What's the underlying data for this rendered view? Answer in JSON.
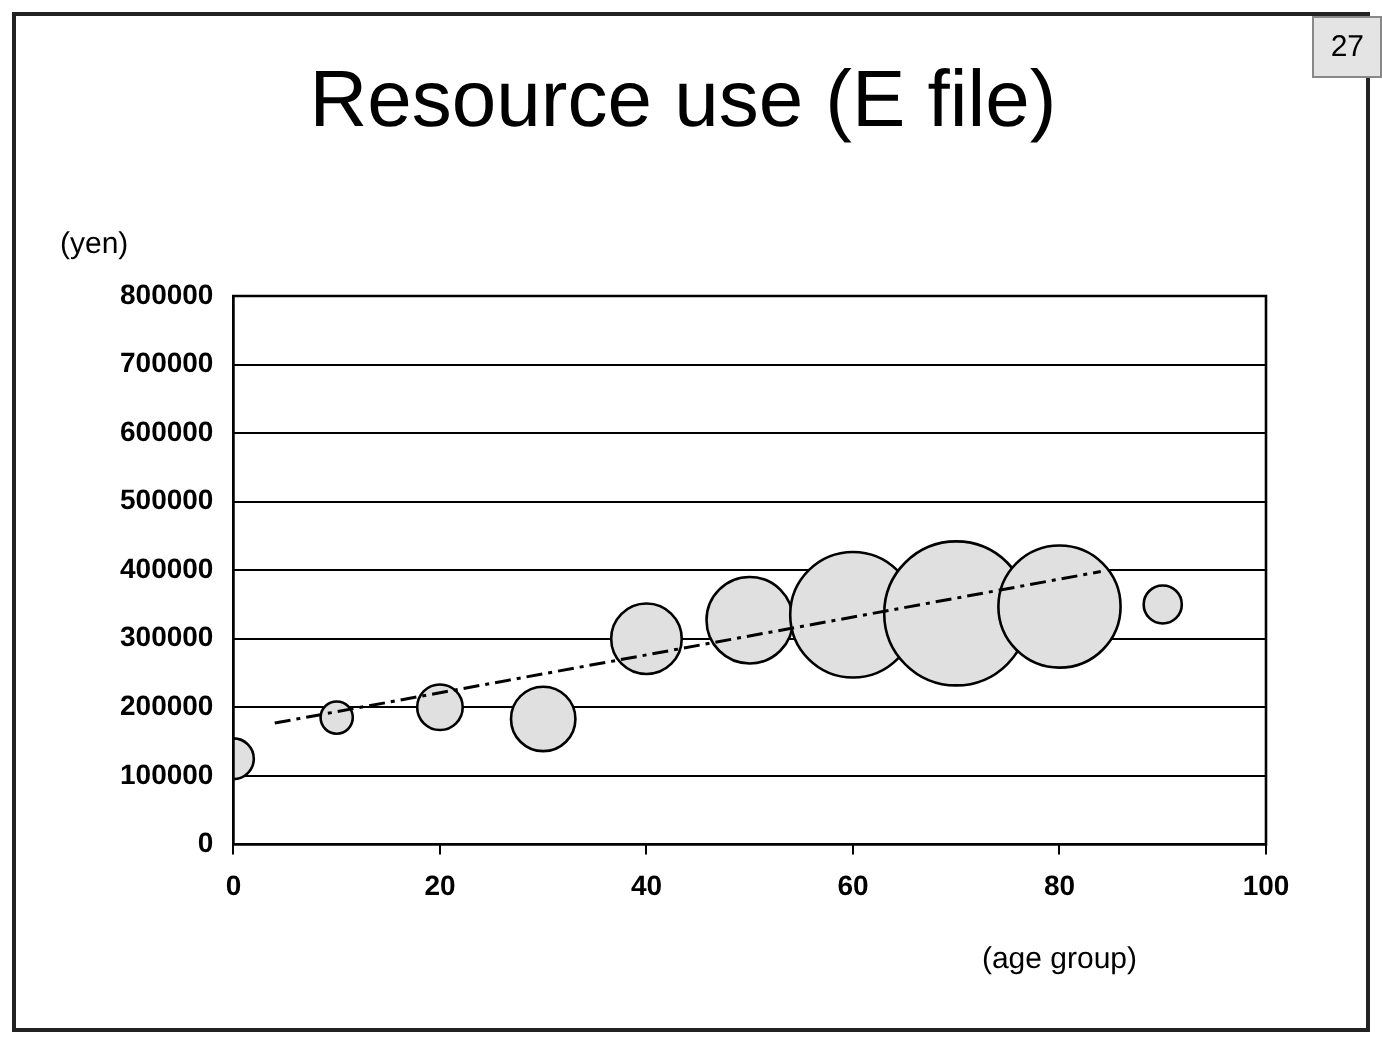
{
  "chart_data": {
    "type": "bubble",
    "title": "Resource use (E file)",
    "xlabel": "(age group)",
    "ylabel": "(yen)",
    "annotations": [
      "27"
    ],
    "x": [
      0,
      10,
      20,
      30,
      40,
      50,
      60,
      70,
      80,
      90
    ],
    "series": [
      {
        "type": "bubble",
        "color": "#e0e0e0",
        "values": [
          125000,
          185000,
          200000,
          183000,
          300000,
          327000,
          335000,
          337000,
          347000,
          350000
        ],
        "sizes": [
          0.08,
          0.05,
          0.1,
          0.2,
          0.24,
          0.36,
          0.76,
          1,
          0.72,
          0.07
        ]
      },
      {
        "type": "line",
        "color": "#000000",
        "x": [
          4,
          84
        ],
        "values": [
          177000,
          398000
        ],
        "line_style": "dashed",
        "marker": "none"
      }
    ],
    "xlim": [
      0,
      100
    ],
    "xticks": [
      0,
      20,
      40,
      60,
      80,
      100
    ],
    "ylim": [
      0,
      800000
    ],
    "yticks": [
      0,
      100000,
      200000,
      300000,
      400000,
      500000,
      600000,
      700000,
      800000
    ],
    "grid": "y",
    "legend": false
  }
}
